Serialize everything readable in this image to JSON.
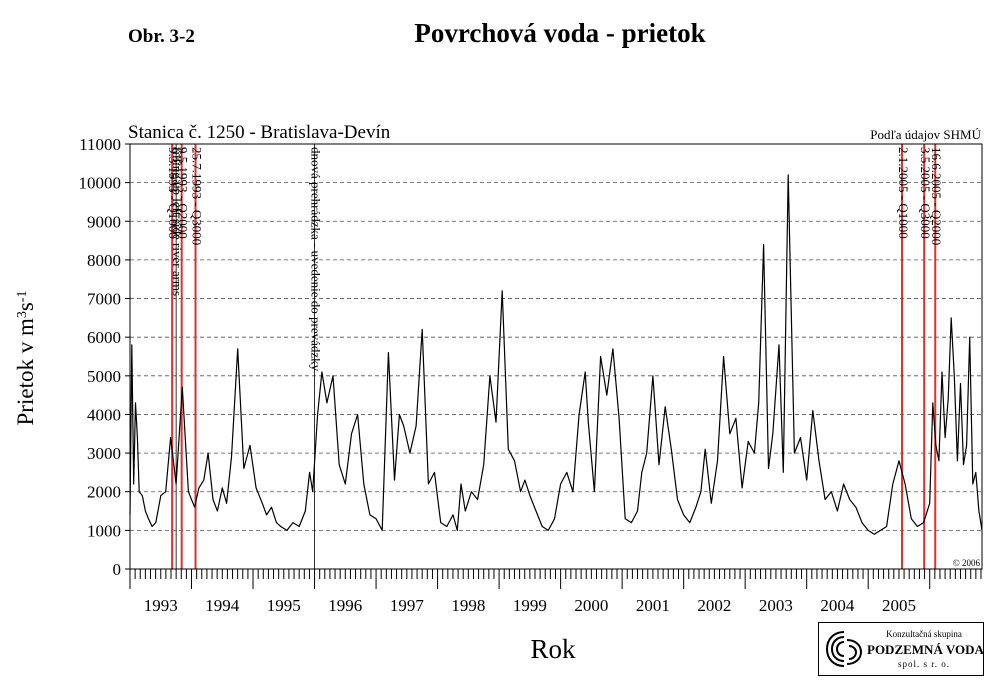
{
  "figure_label": "Obr. 3-2",
  "title": "Povrchová voda - prietok",
  "logo": {
    "line1": "Konzultačná skupina",
    "line2": "PODZEMNÁ VODA",
    "line3": "spol. s r. o."
  },
  "chart_data": {
    "type": "line",
    "subtitle": "Stanica č. 1250 - Bratislava-Devín",
    "source": "Podľa údajov SHMÚ",
    "copyright": "© 2006",
    "xlabel": "Rok",
    "ylabel": "Prietok v m",
    "ylabel_sup1": "3",
    "ylabel_mid": "s",
    "ylabel_sup2": "-1",
    "xlim": [
      1992.0,
      2005.85
    ],
    "ylim": [
      0,
      11000
    ],
    "ytick_step": 1000,
    "grid": "horizontal dashed",
    "x_tick_labels": [
      "1993",
      "1994",
      "1995",
      "1996",
      "1997",
      "1998",
      "1999",
      "2000",
      "2001",
      "2002",
      "2003",
      "2004",
      "2005"
    ],
    "series": [
      {
        "color": "#000000",
        "x": [
          1992.0,
          1992.03,
          1992.06,
          1992.09,
          1992.12,
          1992.15,
          1992.2,
          1992.25,
          1992.3,
          1992.36,
          1992.42,
          1992.5,
          1992.58,
          1992.66,
          1992.75,
          1992.85,
          1992.95,
          1993.05,
          1993.12,
          1993.2,
          1993.27,
          1993.35,
          1993.42,
          1993.5,
          1993.57,
          1993.65,
          1993.75,
          1993.85,
          1993.95,
          1994.05,
          1994.15,
          1994.22,
          1994.3,
          1994.38,
          1994.45,
          1994.55,
          1994.65,
          1994.75,
          1994.85,
          1994.92,
          1994.97,
          1995.05,
          1995.12,
          1995.2,
          1995.3,
          1995.4,
          1995.5,
          1995.6,
          1995.7,
          1995.8,
          1995.9,
          1996.0,
          1996.1,
          1996.2,
          1996.3,
          1996.38,
          1996.45,
          1996.55,
          1996.65,
          1996.75,
          1996.85,
          1996.95,
          1997.05,
          1997.15,
          1997.25,
          1997.32,
          1997.38,
          1997.45,
          1997.55,
          1997.65,
          1997.75,
          1997.85,
          1997.95,
          1998.05,
          1998.15,
          1998.25,
          1998.35,
          1998.42,
          1998.5,
          1998.6,
          1998.7,
          1998.8,
          1998.9,
          1999.0,
          1999.1,
          1999.2,
          1999.3,
          1999.4,
          1999.45,
          1999.55,
          1999.65,
          1999.75,
          1999.85,
          1999.95,
          2000.05,
          2000.15,
          2000.25,
          2000.32,
          2000.4,
          2000.5,
          2000.6,
          2000.7,
          2000.8,
          2000.9,
          2001.0,
          2001.1,
          2001.2,
          2001.28,
          2001.35,
          2001.45,
          2001.55,
          2001.65,
          2001.75,
          2001.85,
          2001.95,
          2002.05,
          2002.15,
          2002.22,
          2002.3,
          2002.38,
          2002.45,
          2002.55,
          2002.62,
          2002.7,
          2002.8,
          2002.9,
          2003.0,
          2003.1,
          2003.2,
          2003.3,
          2003.4,
          2003.5,
          2003.6,
          2003.7,
          2003.8,
          2003.9,
          2004.0,
          2004.1,
          2004.2,
          2004.3,
          2004.4,
          2004.5,
          2004.6,
          2004.7,
          2004.8,
          2004.9,
          2005.0,
          2005.05,
          2005.1,
          2005.15,
          2005.2,
          2005.25,
          2005.3,
          2005.35,
          2005.4,
          2005.45,
          2005.5,
          2005.55,
          2005.6,
          2005.65,
          2005.7,
          2005.75,
          2005.8,
          2005.85
        ],
        "y": [
          1400,
          5800,
          2200,
          4300,
          3400,
          2000,
          1900,
          1500,
          1300,
          1100,
          1200,
          1900,
          2000,
          3400,
          2200,
          4700,
          2000,
          1600,
          2100,
          2300,
          3000,
          1800,
          1500,
          2100,
          1700,
          2900,
          5700,
          2600,
          3200,
          2100,
          1700,
          1400,
          1600,
          1200,
          1100,
          1000,
          1200,
          1100,
          1500,
          2500,
          2000,
          4000,
          5100,
          4300,
          5000,
          2700,
          2200,
          3500,
          4000,
          2200,
          1400,
          1300,
          1000,
          5600,
          2300,
          4000,
          3700,
          3000,
          3700,
          6200,
          2200,
          2500,
          1200,
          1100,
          1400,
          1000,
          2200,
          1500,
          2000,
          1800,
          2700,
          5000,
          3800,
          7200,
          3100,
          2800,
          2000,
          2300,
          1900,
          1500,
          1100,
          1000,
          1300,
          2200,
          2500,
          2000,
          4000,
          5100,
          3800,
          2000,
          5500,
          4500,
          5700,
          3900,
          1300,
          1200,
          1500,
          2500,
          3000,
          5000,
          2700,
          4200,
          3100,
          1800,
          1400,
          1200,
          1600,
          2000,
          3100,
          1700,
          2800,
          5500,
          3500,
          3900,
          2100,
          3300,
          3000,
          4300,
          8400,
          2600,
          3500,
          5800,
          2500,
          10200,
          3000,
          3400,
          2300,
          4100,
          2800,
          1800,
          2000,
          1500,
          2200,
          1800,
          1600,
          1200,
          1000,
          900,
          1000,
          1100,
          2200,
          2800,
          2200,
          1300,
          1100,
          1200,
          1700,
          4300,
          3200,
          2800,
          5100,
          3400,
          4400,
          6500,
          5000,
          2800,
          4800,
          2700,
          3200,
          6000,
          2200,
          2500,
          1500,
          1000
        ]
      }
    ],
    "events": [
      {
        "x": 1992.685,
        "label": "9.3.1993 - Q1000",
        "color": "#e0302a"
      },
      {
        "x": 1992.84,
        "label": "9.5.1993 - Q2000",
        "color": "#e0302a"
      },
      {
        "x": 1993.065,
        "label": "25.7.1993 - Q3000",
        "color": "#e0302a"
      },
      {
        "x": 1992.75,
        "label": "filling up left side river arms",
        "color": "#000000"
      },
      {
        "x": 1995.0,
        "label": "dnová prehrádzka - uvedenie do prevádzky",
        "color": "#000000"
      },
      {
        "x": 2004.55,
        "label": "2.1.2005 - Q1000",
        "color": "#e0302a"
      },
      {
        "x": 2004.91,
        "label": "3.5.2005 - Q3000",
        "color": "#e0302a"
      },
      {
        "x": 2005.09,
        "label": "16.6.2005 - Q2000",
        "color": "#e0302a"
      }
    ]
  }
}
